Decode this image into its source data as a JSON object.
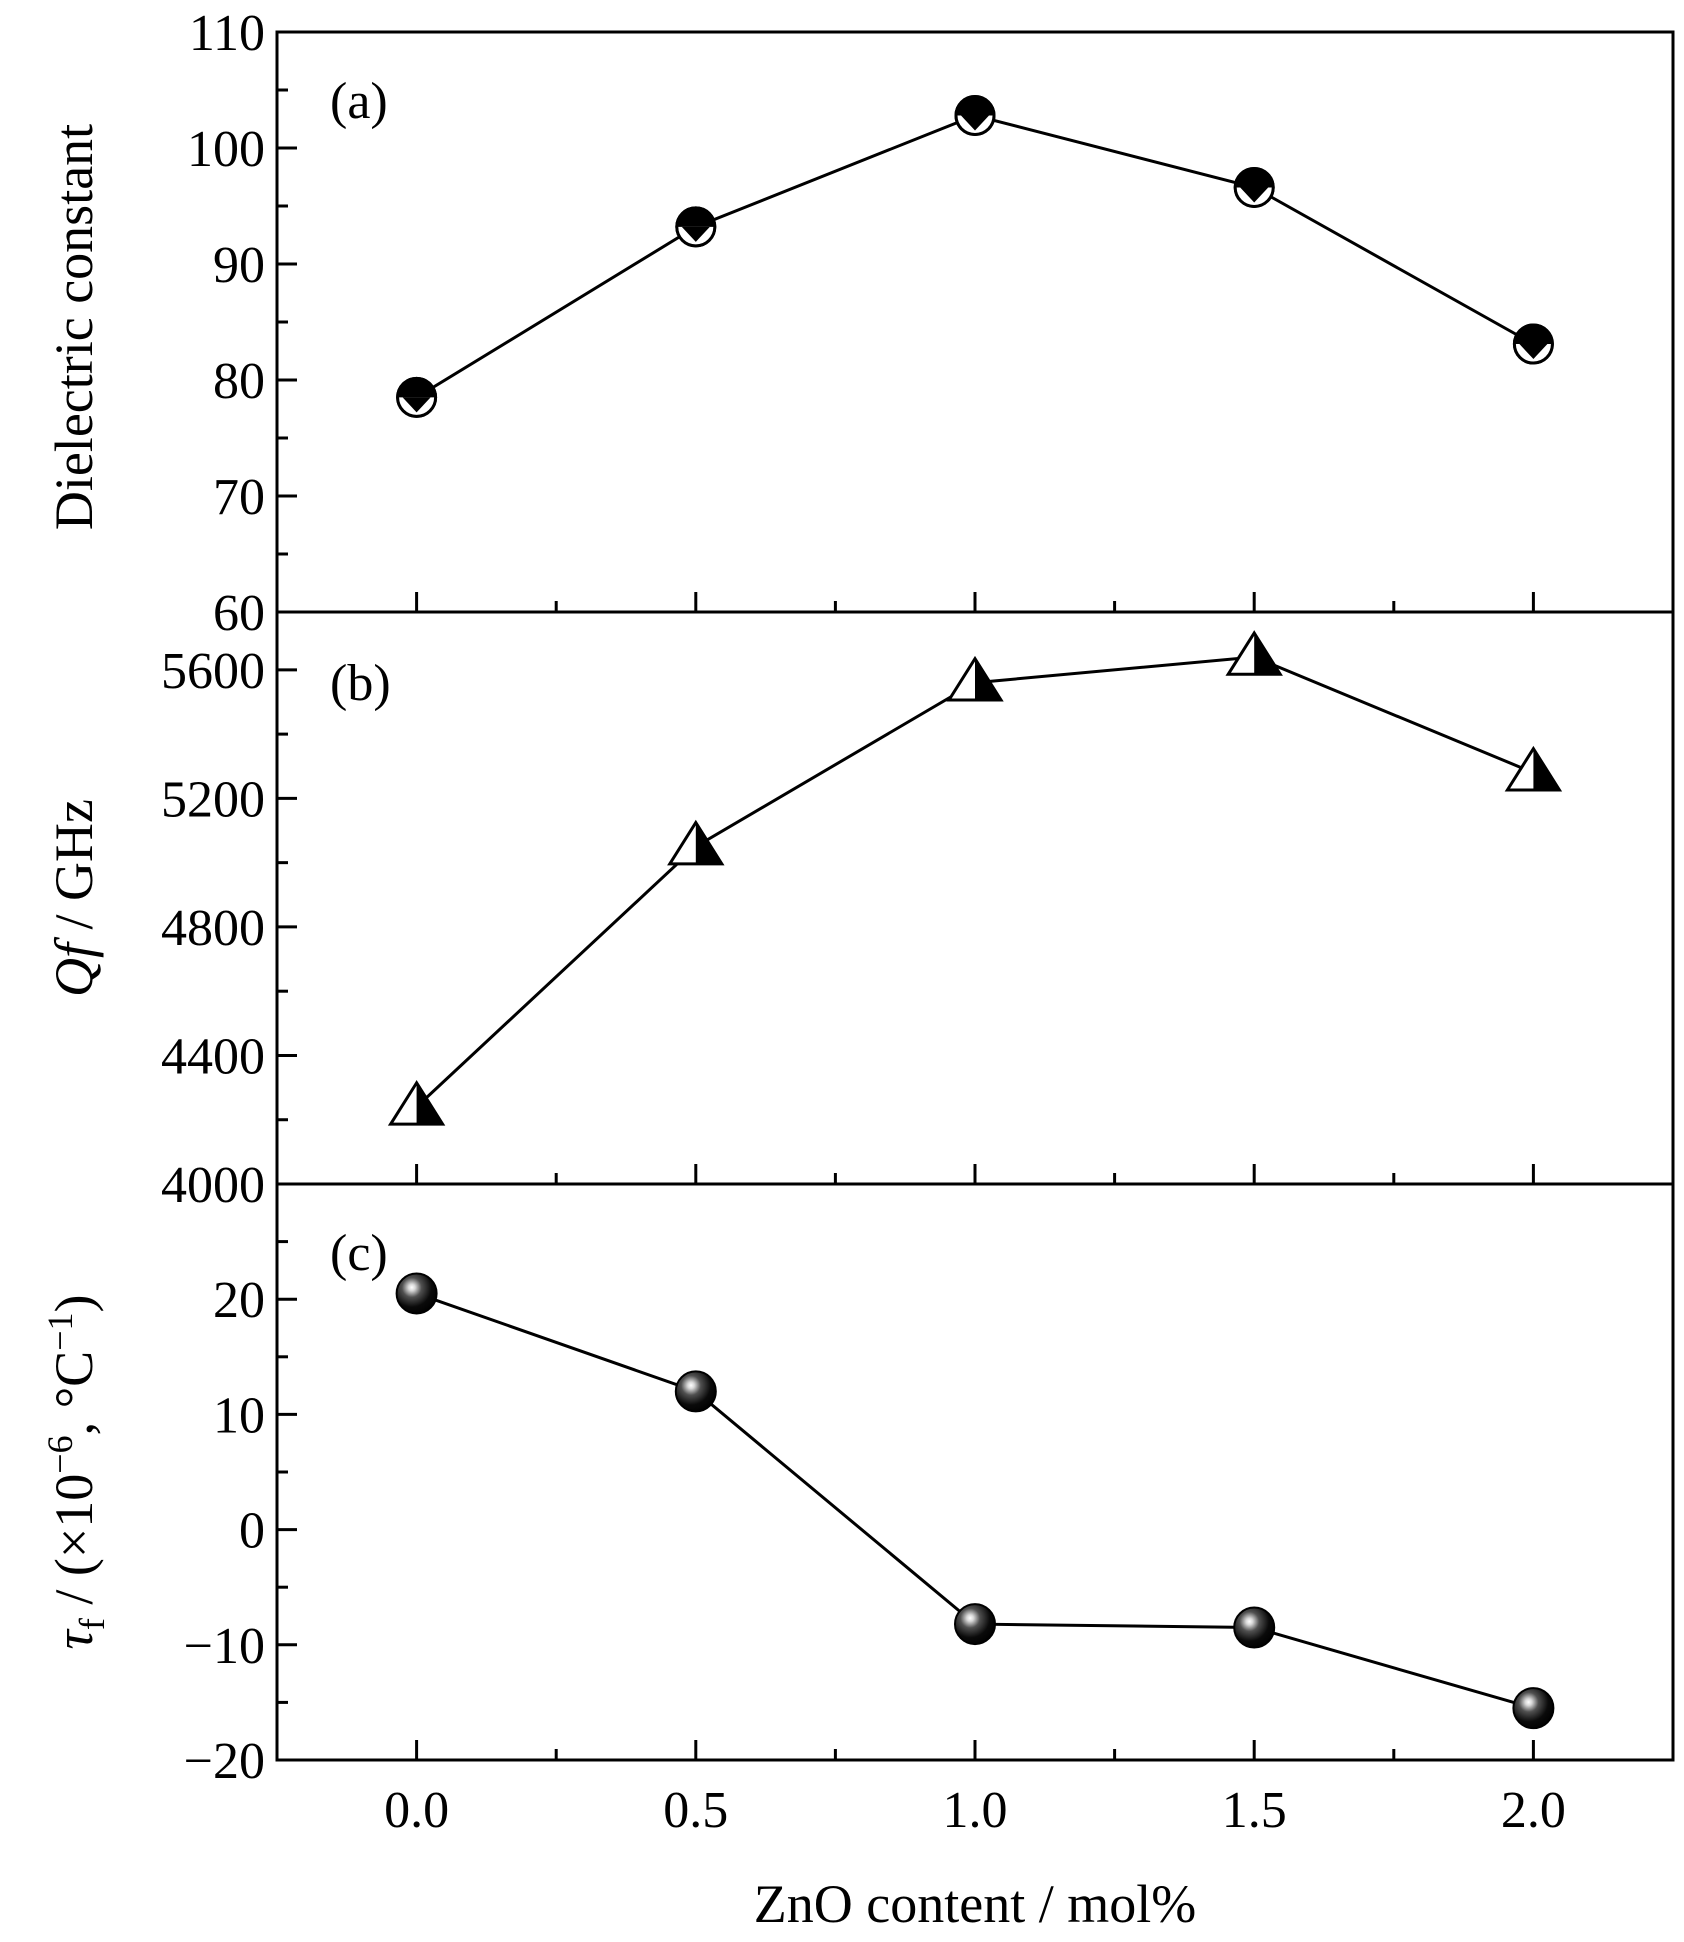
{
  "chart_data": [
    {
      "type": "line",
      "panel_label": "(a)",
      "x": [
        0.0,
        0.5,
        1.0,
        1.5,
        2.0
      ],
      "series": [
        {
          "values": [
            78.5,
            93.2,
            102.8,
            96.6,
            83.1
          ],
          "marker": "half-filled-circle-down-triangle"
        }
      ],
      "ylabel": "Dielectric constant",
      "ylim": [
        60,
        110
      ],
      "yticks": [
        60,
        70,
        80,
        90,
        100,
        110
      ],
      "ytick_labels": [
        "60",
        "70",
        "80",
        "90",
        "100",
        "110"
      ]
    },
    {
      "type": "line",
      "panel_label": "(b)",
      "x": [
        0.0,
        0.5,
        1.0,
        1.5,
        2.0
      ],
      "series": [
        {
          "values": [
            4240,
            5050,
            5560,
            5640,
            5280
          ],
          "marker": "half-filled-triangle"
        }
      ],
      "ylabel_italic": "Qf",
      "ylabel_rest": " / GHz",
      "ylim": [
        4000,
        5780
      ],
      "yticks": [
        4000,
        4400,
        4800,
        5200,
        5600
      ],
      "ytick_labels": [
        "4000",
        "4400",
        "4800",
        "5200",
        "5600"
      ]
    },
    {
      "type": "line",
      "panel_label": "(c)",
      "x": [
        0.0,
        0.5,
        1.0,
        1.5,
        2.0
      ],
      "series": [
        {
          "values": [
            20.5,
            12.0,
            -8.2,
            -8.5,
            -15.5
          ],
          "marker": "shaded-sphere"
        }
      ],
      "ylabel_symbol": "τ",
      "ylabel_subscript": "f",
      "ylabel_rest": " / (×10",
      "ylabel_exp1": "−6",
      "ylabel_mid": ", °C",
      "ylabel_exp2": "−1",
      "ylabel_end": ")",
      "ylim": [
        -20,
        30
      ],
      "yticks": [
        -20,
        -10,
        0,
        10,
        20
      ],
      "ytick_labels": [
        "−20",
        "−10",
        "0",
        "10",
        "20"
      ]
    }
  ],
  "x_axis": {
    "label": "ZnO content / mol%",
    "xlim": [
      -0.25,
      2.25
    ],
    "ticks": [
      0.0,
      0.5,
      1.0,
      1.5,
      2.0
    ],
    "tick_labels": [
      "0.0",
      "0.5",
      "1.0",
      "1.5",
      "2.0"
    ]
  },
  "colors": {
    "line": "#000000",
    "marker": "#000000",
    "background": "#ffffff"
  }
}
